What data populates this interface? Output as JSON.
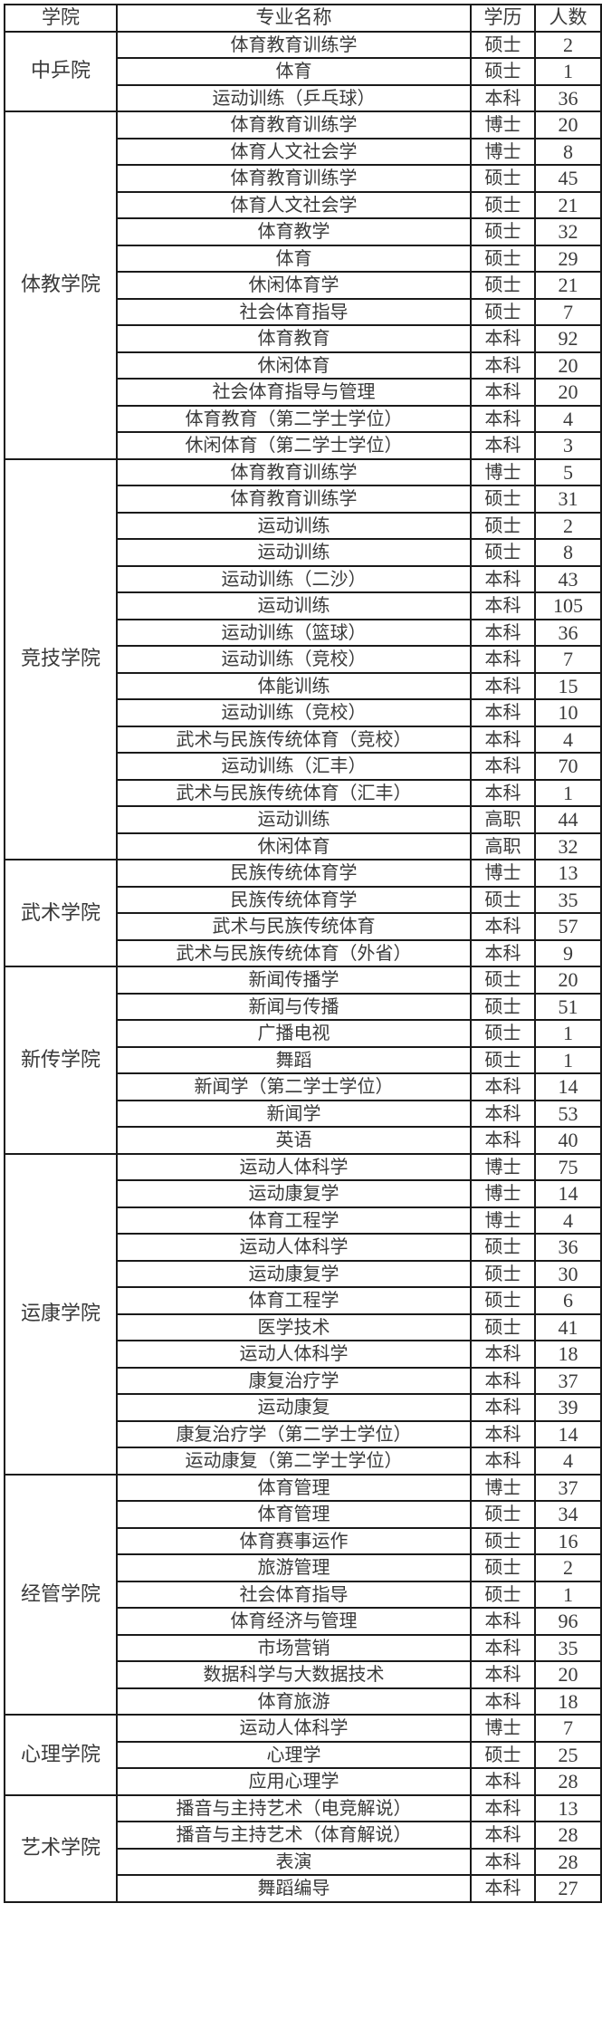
{
  "table": {
    "headers": [
      "学院",
      "专业名称",
      "学历",
      "人数"
    ],
    "colleges": [
      {
        "name": "中乒院",
        "rows": [
          [
            "体育教育训练学",
            "硕士",
            "2"
          ],
          [
            "体育",
            "硕士",
            "1"
          ],
          [
            "运动训练（乒乓球）",
            "本科",
            "36"
          ]
        ]
      },
      {
        "name": "体教学院",
        "rows": [
          [
            "体育教育训练学",
            "博士",
            "20"
          ],
          [
            "体育人文社会学",
            "博士",
            "8"
          ],
          [
            "体育教育训练学",
            "硕士",
            "45"
          ],
          [
            "体育人文社会学",
            "硕士",
            "21"
          ],
          [
            "体育教学",
            "硕士",
            "32"
          ],
          [
            "体育",
            "硕士",
            "29"
          ],
          [
            "休闲体育学",
            "硕士",
            "21"
          ],
          [
            "社会体育指导",
            "硕士",
            "7"
          ],
          [
            "体育教育",
            "本科",
            "92"
          ],
          [
            "休闲体育",
            "本科",
            "20"
          ],
          [
            "社会体育指导与管理",
            "本科",
            "20"
          ],
          [
            "体育教育（第二学士学位）",
            "本科",
            "4"
          ],
          [
            "休闲体育（第二学士学位）",
            "本科",
            "3"
          ]
        ]
      },
      {
        "name": "竞技学院",
        "rows": [
          [
            "体育教育训练学",
            "博士",
            "5"
          ],
          [
            "体育教育训练学",
            "硕士",
            "31"
          ],
          [
            "运动训练",
            "硕士",
            "2"
          ],
          [
            "运动训练",
            "硕士",
            "8"
          ],
          [
            "运动训练（二沙）",
            "本科",
            "43"
          ],
          [
            "运动训练",
            "本科",
            "105"
          ],
          [
            "运动训练（篮球）",
            "本科",
            "36"
          ],
          [
            "运动训练（竞校）",
            "本科",
            "7"
          ],
          [
            "体能训练",
            "本科",
            "15"
          ],
          [
            "运动训练（竞校）",
            "本科",
            "10"
          ],
          [
            "武术与民族传统体育（竞校）",
            "本科",
            "4"
          ],
          [
            "运动训练（汇丰）",
            "本科",
            "70"
          ],
          [
            "武术与民族传统体育（汇丰）",
            "本科",
            "1"
          ],
          [
            "运动训练",
            "高职",
            "44"
          ],
          [
            "休闲体育",
            "高职",
            "32"
          ]
        ]
      },
      {
        "name": "武术学院",
        "rows": [
          [
            "民族传统体育学",
            "博士",
            "13"
          ],
          [
            "民族传统体育学",
            "硕士",
            "35"
          ],
          [
            "武术与民族传统体育",
            "本科",
            "57"
          ],
          [
            "武术与民族传统体育（外省）",
            "本科",
            "9"
          ]
        ]
      },
      {
        "name": "新传学院",
        "rows": [
          [
            "新闻传播学",
            "硕士",
            "20"
          ],
          [
            "新闻与传播",
            "硕士",
            "51"
          ],
          [
            "广播电视",
            "硕士",
            "1"
          ],
          [
            "舞蹈",
            "硕士",
            "1"
          ],
          [
            "新闻学（第二学士学位）",
            "本科",
            "14"
          ],
          [
            "新闻学",
            "本科",
            "53"
          ],
          [
            "英语",
            "本科",
            "40"
          ]
        ]
      },
      {
        "name": "运康学院",
        "rows": [
          [
            "运动人体科学",
            "博士",
            "75"
          ],
          [
            "运动康复学",
            "博士",
            "14"
          ],
          [
            "体育工程学",
            "博士",
            "4"
          ],
          [
            "运动人体科学",
            "硕士",
            "36"
          ],
          [
            "运动康复学",
            "硕士",
            "30"
          ],
          [
            "体育工程学",
            "硕士",
            "6"
          ],
          [
            "医学技术",
            "硕士",
            "41"
          ],
          [
            "运动人体科学",
            "本科",
            "18"
          ],
          [
            "康复治疗学",
            "本科",
            "37"
          ],
          [
            "运动康复",
            "本科",
            "39"
          ],
          [
            "康复治疗学（第二学士学位）",
            "本科",
            "14"
          ],
          [
            "运动康复（第二学士学位）",
            "本科",
            "4"
          ]
        ]
      },
      {
        "name": "经管学院",
        "rows": [
          [
            "体育管理",
            "博士",
            "37"
          ],
          [
            "体育管理",
            "硕士",
            "34"
          ],
          [
            "体育赛事运作",
            "硕士",
            "16"
          ],
          [
            "旅游管理",
            "硕士",
            "2"
          ],
          [
            "社会体育指导",
            "硕士",
            "1"
          ],
          [
            "体育经济与管理",
            "本科",
            "96"
          ],
          [
            "市场营销",
            "本科",
            "35"
          ],
          [
            "数据科学与大数据技术",
            "本科",
            "20"
          ],
          [
            "体育旅游",
            "本科",
            "18"
          ]
        ]
      },
      {
        "name": "心理学院",
        "rows": [
          [
            "运动人体科学",
            "博士",
            "7"
          ],
          [
            "心理学",
            "硕士",
            "25"
          ],
          [
            "应用心理学",
            "本科",
            "28"
          ]
        ]
      },
      {
        "name": "艺术学院",
        "rows": [
          [
            "播音与主持艺术（电竞解说）",
            "本科",
            "13"
          ],
          [
            "播音与主持艺术（体育解说）",
            "本科",
            "28"
          ],
          [
            "表演",
            "本科",
            "28"
          ],
          [
            "舞蹈编导",
            "本科",
            "27"
          ]
        ]
      }
    ]
  }
}
